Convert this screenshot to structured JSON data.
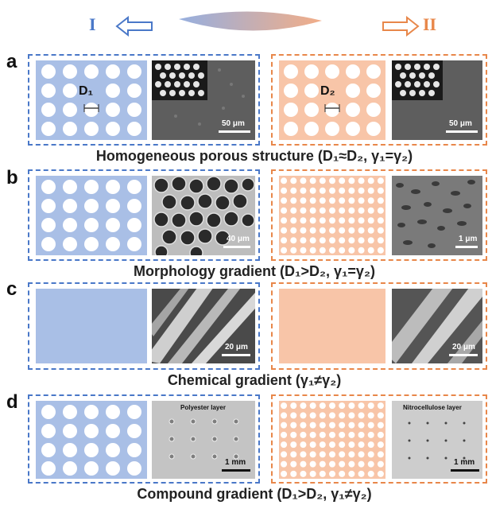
{
  "header": {
    "left_label": "I",
    "right_label": "II",
    "colors": {
      "left": "#4a78c8",
      "right": "#e8874a"
    }
  },
  "panels": [
    {
      "letter": "a",
      "caption": "Homogeneous porous structure (D₁≈D₂, γ₁=γ₂)",
      "left_label": "D₁",
      "right_label": "D₂",
      "left_scale": "50 μm",
      "right_scale": "50 μm"
    },
    {
      "letter": "b",
      "caption": "Morphology gradient (D₁>D₂, γ₁=γ₂)",
      "left_scale": "40 μm",
      "right_scale": "1 μm"
    },
    {
      "letter": "c",
      "caption": "Chemical gradient (γ₁≠γ₂)",
      "left_scale": "20 μm",
      "right_scale": "20 μm"
    },
    {
      "letter": "d",
      "caption": "Compound gradient (D₁>D₂, γ₁≠γ₂)",
      "left_layer": "Polyester layer",
      "right_layer": "Nitrocellulose layer",
      "left_scale": "1 mm",
      "right_scale": "1 mm"
    }
  ],
  "colors": {
    "blue_fill": "#a9bfe6",
    "orange_fill": "#f8c5a8"
  }
}
